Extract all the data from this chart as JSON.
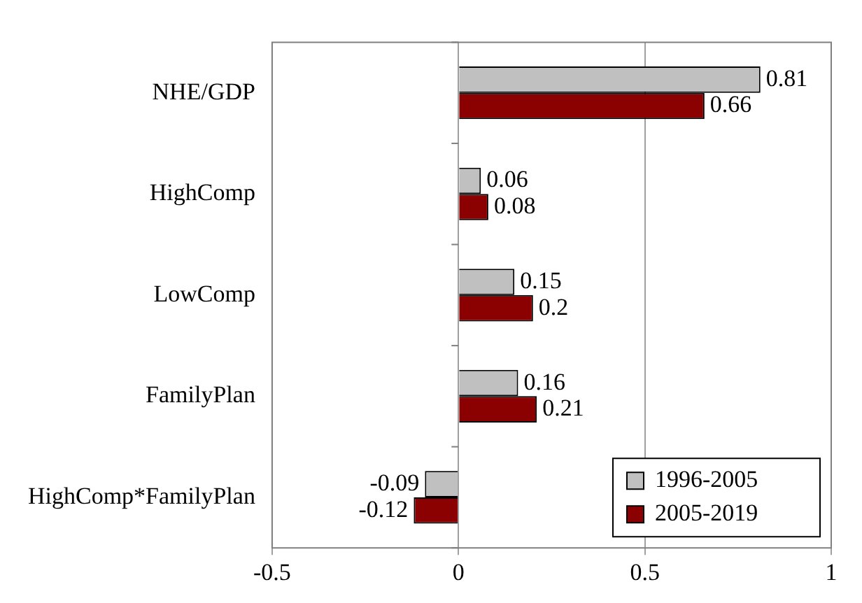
{
  "chart_data": {
    "type": "bar",
    "orientation": "horizontal",
    "categories": [
      "NHE/GDP",
      "HighComp",
      "LowComp",
      "FamilyPlan",
      "HighComp*FamilyPlan"
    ],
    "series": [
      {
        "name": "1996-2005",
        "color": "#c0c0c0",
        "values": [
          0.81,
          0.06,
          0.15,
          0.16,
          -0.09
        ]
      },
      {
        "name": "2005-2019",
        "color": "#8b0000",
        "values": [
          0.66,
          0.08,
          0.2,
          0.21,
          -0.12
        ]
      }
    ],
    "xlim": [
      -0.5,
      1
    ],
    "xticks": [
      -0.5,
      0,
      0.5,
      1
    ],
    "grid": "x",
    "legend": "bottom right",
    "data_labels": true
  }
}
